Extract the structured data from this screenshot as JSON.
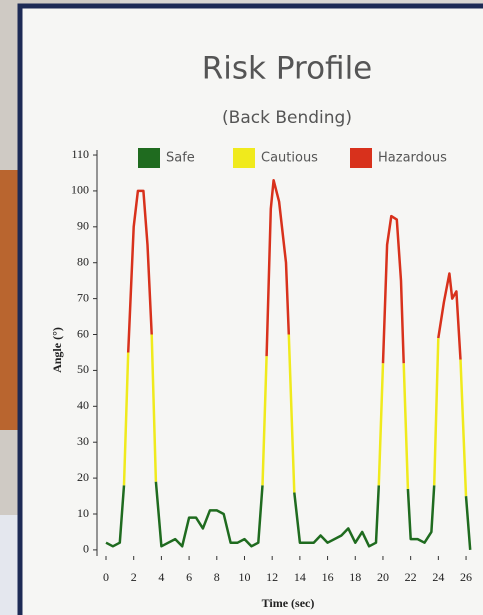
{
  "chart_data": {
    "type": "line",
    "title": "Risk Profile",
    "subtitle": "(Back Bending)",
    "x_label": "Time (sec)",
    "y_label": "Angle (°)",
    "legend": "top",
    "x": [
      0,
      0.5,
      1,
      1.3,
      1.6,
      2,
      2.3,
      2.7,
      3,
      3.3,
      3.6,
      4,
      4.5,
      5,
      5.5,
      6,
      6.5,
      7,
      7.5,
      8,
      8.5,
      9,
      9.5,
      10,
      10.5,
      11,
      11.3,
      11.6,
      11.9,
      12.1,
      12.5,
      13,
      13.2,
      13.6,
      14,
      15,
      15.5,
      16,
      17,
      17.5,
      18,
      18.5,
      19,
      19.5,
      19.7,
      20,
      20.3,
      20.6,
      21,
      21.3,
      21.5,
      21.8,
      22,
      22.5,
      23,
      23.5,
      23.7,
      24,
      24.4,
      24.8,
      25,
      25.3,
      25.6,
      26,
      26.3
    ],
    "series": [
      {
        "name": "Safe",
        "color": "#1f6b1f",
        "values": [
          2,
          1,
          2,
          18,
          null,
          null,
          null,
          null,
          null,
          null,
          19,
          1,
          2,
          3,
          1,
          9,
          9,
          6,
          11,
          11,
          10,
          2,
          2,
          3,
          1,
          2,
          18,
          null,
          null,
          null,
          null,
          null,
          null,
          16,
          2,
          2,
          4,
          2,
          4,
          6,
          2,
          5,
          1,
          2,
          18,
          null,
          null,
          null,
          null,
          null,
          null,
          17,
          3,
          3,
          2,
          5,
          18,
          null,
          null,
          null,
          null,
          null,
          null,
          15,
          0
        ]
      },
      {
        "name": "Cautious",
        "color": "#f0ea1c",
        "values": [
          null,
          null,
          null,
          18,
          55,
          null,
          null,
          null,
          null,
          60,
          19,
          null,
          null,
          null,
          null,
          null,
          null,
          null,
          null,
          null,
          null,
          null,
          null,
          null,
          null,
          null,
          18,
          54,
          null,
          null,
          null,
          null,
          60,
          16,
          null,
          null,
          null,
          null,
          null,
          null,
          null,
          null,
          null,
          null,
          18,
          52,
          null,
          null,
          null,
          null,
          52,
          17,
          null,
          null,
          null,
          null,
          18,
          59,
          null,
          null,
          null,
          null,
          53,
          15,
          null
        ]
      },
      {
        "name": "Hazardous",
        "color": "#d8311c",
        "values": [
          null,
          null,
          null,
          null,
          55,
          90,
          100,
          100,
          85,
          60,
          null,
          null,
          null,
          null,
          null,
          null,
          null,
          null,
          null,
          null,
          null,
          null,
          null,
          null,
          null,
          null,
          null,
          54,
          95,
          103,
          97,
          80,
          60,
          null,
          null,
          null,
          null,
          null,
          null,
          null,
          null,
          null,
          null,
          null,
          null,
          52,
          85,
          93,
          92,
          75,
          52,
          null,
          null,
          null,
          null,
          null,
          null,
          59,
          69,
          77,
          70,
          72,
          53,
          null,
          null
        ]
      }
    ],
    "xlim": [
      -0.65,
      26.43
    ],
    "xticks": [
      0,
      2,
      4,
      6,
      8,
      10,
      12,
      14,
      16,
      18,
      20,
      22,
      24,
      26
    ],
    "ylim": [
      -1.7,
      111.4
    ],
    "yticks": [
      0,
      10,
      20,
      30,
      40,
      50,
      60,
      70,
      80,
      90,
      100,
      110
    ]
  }
}
